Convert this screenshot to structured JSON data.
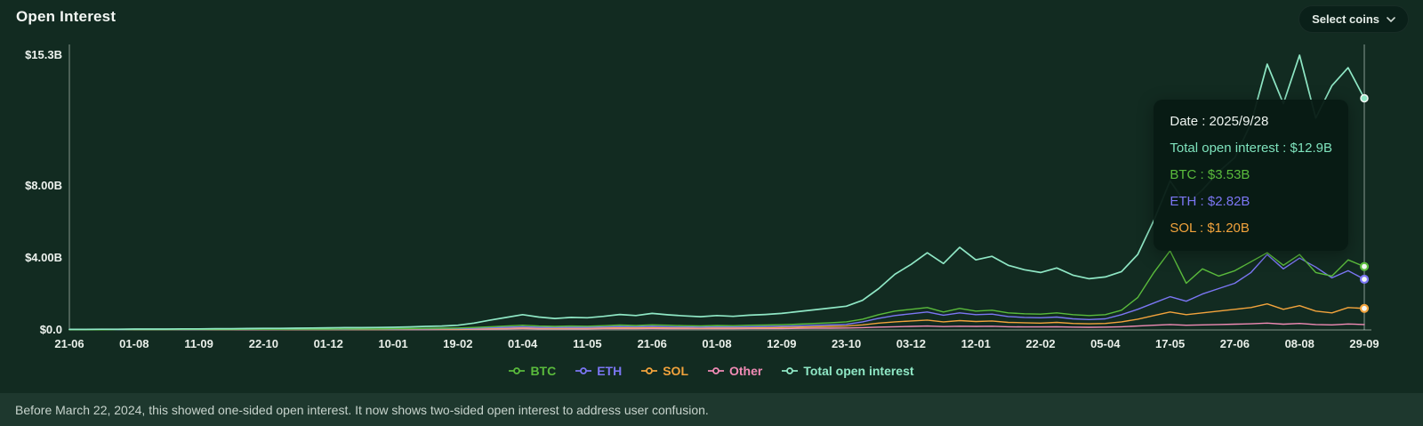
{
  "header": {
    "title": "Open Interest",
    "select_coins_label": "Select coins"
  },
  "tooltip": {
    "rows": [
      {
        "text": "Date : 2025/9/28",
        "color": "#eef4f0"
      },
      {
        "text": "Total open interest : $12.9B",
        "color": "#7fe3bd"
      },
      {
        "text": "BTC : $3.53B",
        "color": "#5abb3c"
      },
      {
        "text": "ETH : $2.82B",
        "color": "#7b76f3"
      },
      {
        "text": "SOL : $1.20B",
        "color": "#f2a33c"
      }
    ]
  },
  "legend": {
    "items": [
      {
        "label": "BTC",
        "color": "#5abb3c"
      },
      {
        "label": "ETH",
        "color": "#7b76f3"
      },
      {
        "label": "SOL",
        "color": "#f2a33c"
      },
      {
        "label": "Other",
        "color": "#f08bb5"
      },
      {
        "label": "Total open interest",
        "color": "#8fe7c5"
      }
    ]
  },
  "footer": {
    "note": "Before March 22, 2024, this showed one-sided open interest. It now shows two-sided open interest to address user confusion."
  },
  "chart_data": {
    "type": "line",
    "title": "Open Interest",
    "unit": "USD billions",
    "ylim": [
      0,
      15.3
    ],
    "grid": false,
    "legend_position": "bottom",
    "y_ticks": [
      {
        "value": 15.3,
        "label": "$15.3B"
      },
      {
        "value": 8,
        "label": "$8.00B"
      },
      {
        "value": 4,
        "label": "$4.00B"
      },
      {
        "value": 0,
        "label": "$0.0"
      }
    ],
    "x_tick_labels": [
      "21-06",
      "01-08",
      "11-09",
      "22-10",
      "01-12",
      "10-01",
      "19-02",
      "01-04",
      "11-05",
      "21-06",
      "01-08",
      "12-09",
      "23-10",
      "03-12",
      "12-01",
      "22-02",
      "05-04",
      "17-05",
      "27-06",
      "08-08",
      "29-09"
    ],
    "hover_point": {
      "date": "2025/9/28",
      "total_open_interest_b": 12.9,
      "btc_b": 3.53,
      "eth_b": 2.82,
      "sol_b": 1.2
    },
    "series": [
      {
        "name": "BTC",
        "color": "#5abb3c",
        "values": [
          0.01,
          0.01,
          0.01,
          0.02,
          0.02,
          0.02,
          0.02,
          0.03,
          0.03,
          0.03,
          0.03,
          0.04,
          0.04,
          0.04,
          0.05,
          0.05,
          0.05,
          0.06,
          0.06,
          0.06,
          0.07,
          0.08,
          0.09,
          0.1,
          0.11,
          0.14,
          0.18,
          0.22,
          0.26,
          0.22,
          0.2,
          0.22,
          0.21,
          0.24,
          0.27,
          0.25,
          0.28,
          0.26,
          0.24,
          0.23,
          0.25,
          0.24,
          0.26,
          0.27,
          0.29,
          0.32,
          0.36,
          0.4,
          0.45,
          0.6,
          0.85,
          1.05,
          1.15,
          1.25,
          1.0,
          1.2,
          1.05,
          1.1,
          0.95,
          0.9,
          0.88,
          0.95,
          0.85,
          0.8,
          0.85,
          1.1,
          1.8,
          3.2,
          4.4,
          2.6,
          3.4,
          3.0,
          3.3,
          3.8,
          4.3,
          3.6,
          4.2,
          3.2,
          3.0,
          3.9,
          3.53
        ]
      },
      {
        "name": "ETH",
        "color": "#7b76f3",
        "values": [
          0.01,
          0.01,
          0.01,
          0.01,
          0.02,
          0.02,
          0.02,
          0.02,
          0.02,
          0.03,
          0.03,
          0.03,
          0.03,
          0.03,
          0.04,
          0.04,
          0.04,
          0.04,
          0.05,
          0.05,
          0.05,
          0.06,
          0.06,
          0.07,
          0.08,
          0.1,
          0.13,
          0.15,
          0.18,
          0.15,
          0.14,
          0.15,
          0.15,
          0.17,
          0.19,
          0.18,
          0.2,
          0.18,
          0.17,
          0.16,
          0.18,
          0.17,
          0.18,
          0.19,
          0.21,
          0.23,
          0.26,
          0.28,
          0.31,
          0.45,
          0.65,
          0.8,
          0.9,
          1.0,
          0.82,
          0.95,
          0.85,
          0.88,
          0.75,
          0.7,
          0.68,
          0.72,
          0.62,
          0.58,
          0.62,
          0.85,
          1.15,
          1.5,
          1.85,
          1.6,
          2.0,
          2.3,
          2.6,
          3.2,
          4.2,
          3.4,
          4.0,
          3.5,
          2.9,
          3.3,
          2.82
        ]
      },
      {
        "name": "SOL",
        "color": "#f2a33c",
        "values": [
          0.01,
          0.01,
          0.01,
          0.01,
          0.01,
          0.01,
          0.01,
          0.02,
          0.02,
          0.02,
          0.02,
          0.02,
          0.02,
          0.02,
          0.03,
          0.03,
          0.03,
          0.03,
          0.03,
          0.03,
          0.03,
          0.04,
          0.04,
          0.05,
          0.05,
          0.07,
          0.09,
          0.11,
          0.13,
          0.11,
          0.1,
          0.11,
          0.11,
          0.12,
          0.13,
          0.12,
          0.14,
          0.13,
          0.12,
          0.11,
          0.12,
          0.12,
          0.13,
          0.13,
          0.14,
          0.16,
          0.18,
          0.2,
          0.22,
          0.28,
          0.38,
          0.45,
          0.5,
          0.55,
          0.45,
          0.52,
          0.47,
          0.5,
          0.42,
          0.4,
          0.38,
          0.42,
          0.36,
          0.34,
          0.36,
          0.45,
          0.6,
          0.8,
          1.0,
          0.85,
          0.95,
          1.05,
          1.15,
          1.25,
          1.45,
          1.15,
          1.35,
          1.05,
          0.95,
          1.25,
          1.2
        ]
      },
      {
        "name": "Other",
        "color": "#f08bb5",
        "values": [
          0.01,
          0.01,
          0.01,
          0.01,
          0.01,
          0.01,
          0.01,
          0.01,
          0.01,
          0.01,
          0.01,
          0.01,
          0.01,
          0.02,
          0.02,
          0.02,
          0.02,
          0.02,
          0.02,
          0.02,
          0.02,
          0.02,
          0.02,
          0.03,
          0.03,
          0.04,
          0.05,
          0.06,
          0.07,
          0.06,
          0.06,
          0.06,
          0.06,
          0.07,
          0.07,
          0.07,
          0.08,
          0.07,
          0.07,
          0.07,
          0.07,
          0.07,
          0.08,
          0.08,
          0.08,
          0.09,
          0.1,
          0.1,
          0.11,
          0.13,
          0.16,
          0.18,
          0.2,
          0.22,
          0.19,
          0.21,
          0.2,
          0.21,
          0.18,
          0.17,
          0.17,
          0.18,
          0.16,
          0.15,
          0.16,
          0.18,
          0.22,
          0.26,
          0.3,
          0.26,
          0.28,
          0.3,
          0.32,
          0.34,
          0.38,
          0.32,
          0.36,
          0.3,
          0.28,
          0.33,
          0.3
        ]
      },
      {
        "name": "Total open interest",
        "color": "#8fe7c5",
        "values": [
          0.03,
          0.03,
          0.04,
          0.04,
          0.05,
          0.05,
          0.05,
          0.06,
          0.06,
          0.07,
          0.07,
          0.08,
          0.09,
          0.09,
          0.1,
          0.11,
          0.12,
          0.13,
          0.13,
          0.14,
          0.15,
          0.17,
          0.2,
          0.22,
          0.26,
          0.38,
          0.55,
          0.7,
          0.85,
          0.72,
          0.64,
          0.7,
          0.68,
          0.76,
          0.86,
          0.8,
          0.92,
          0.84,
          0.78,
          0.74,
          0.8,
          0.76,
          0.82,
          0.86,
          0.92,
          1.02,
          1.12,
          1.22,
          1.32,
          1.65,
          2.3,
          3.1,
          3.65,
          4.3,
          3.7,
          4.6,
          3.9,
          4.1,
          3.6,
          3.35,
          3.2,
          3.45,
          3.05,
          2.85,
          2.95,
          3.25,
          4.2,
          6.1,
          8.3,
          7.0,
          7.8,
          8.8,
          9.6,
          11.5,
          14.8,
          12.6,
          15.3,
          11.8,
          13.6,
          14.6,
          12.9
        ]
      }
    ]
  }
}
